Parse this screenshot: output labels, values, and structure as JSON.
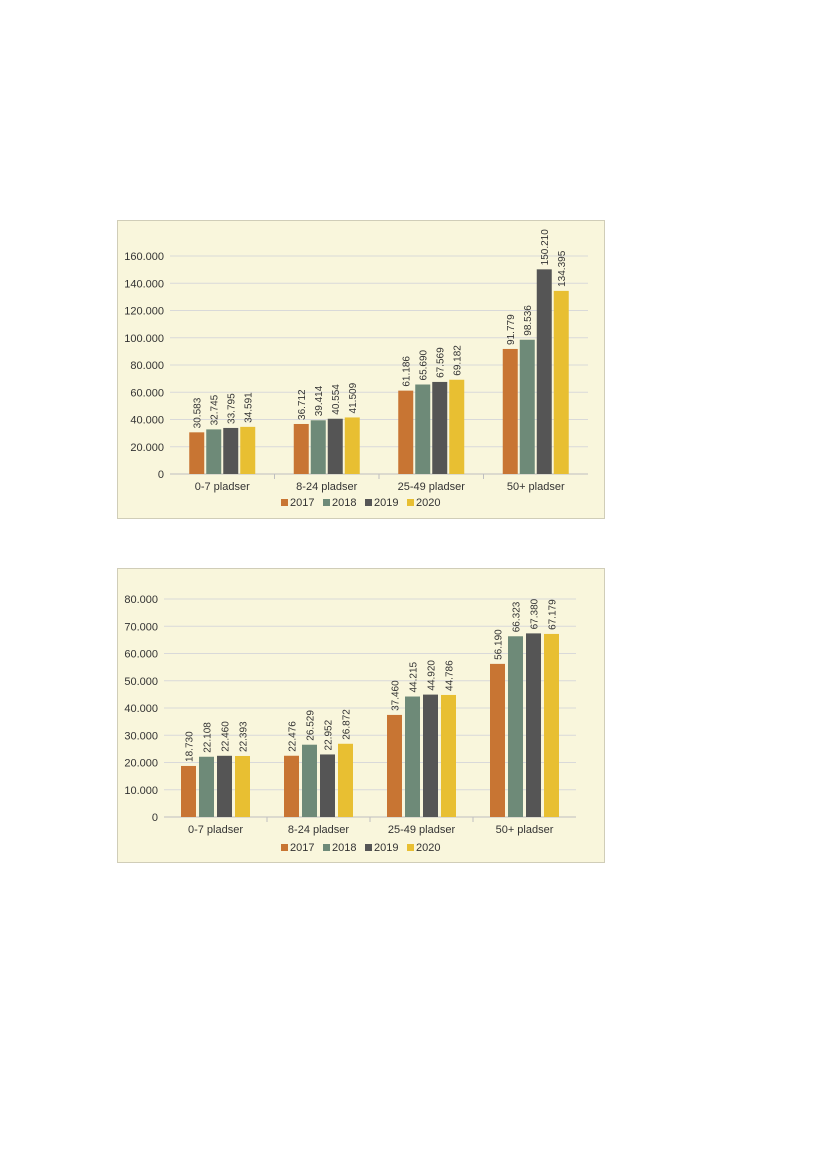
{
  "chart_data": [
    {
      "type": "bar",
      "categories": [
        "0-7 pladser",
        "8-24 pladser",
        "25-49 pladser",
        "50+ pladser"
      ],
      "series": [
        {
          "name": "2017",
          "values": [
            30583,
            36712,
            61186,
            91779
          ],
          "labels": [
            "30.583",
            "36.712",
            "61.186",
            "91.779"
          ]
        },
        {
          "name": "2018",
          "values": [
            32745,
            39414,
            65690,
            98536
          ],
          "labels": [
            "32.745",
            "39.414",
            "65.690",
            "98.536"
          ]
        },
        {
          "name": "2019",
          "values": [
            33795,
            40554,
            67569,
            150210
          ],
          "labels": [
            "33.795",
            "40.554",
            "67.569",
            "150.210"
          ]
        },
        {
          "name": "2020",
          "values": [
            34591,
            41509,
            69182,
            134395
          ],
          "labels": [
            "34.591",
            "41.509",
            "69.182",
            "134.395"
          ]
        }
      ],
      "yticks": [
        "0",
        "20.000",
        "40.000",
        "60.000",
        "80.000",
        "100.000",
        "120.000",
        "140.000",
        "160.000"
      ],
      "ylim": [
        0,
        160000
      ],
      "grid": true,
      "legend_position": "bottom",
      "colors": [
        "#c87533",
        "#6e8a78",
        "#555555",
        "#e8bf32"
      ]
    },
    {
      "type": "bar",
      "categories": [
        "0-7 pladser",
        "8-24 pladser",
        "25-49 pladser",
        "50+ pladser"
      ],
      "series": [
        {
          "name": "2017",
          "values": [
            18730,
            22476,
            37460,
            56190
          ],
          "labels": [
            "18.730",
            "22.476",
            "37.460",
            "56.190"
          ]
        },
        {
          "name": "2018",
          "values": [
            22108,
            26529,
            44215,
            66323
          ],
          "labels": [
            "22.108",
            "26.529",
            "44.215",
            "66.323"
          ]
        },
        {
          "name": "2019",
          "values": [
            22460,
            22952,
            44920,
            67380
          ],
          "labels": [
            "22.460",
            "22.952",
            "44.920",
            "67.380"
          ]
        },
        {
          "name": "2020",
          "values": [
            22393,
            26872,
            44786,
            67179
          ],
          "labels": [
            "22.393",
            "26.872",
            "44.786",
            "67.179"
          ]
        }
      ],
      "yticks": [
        "0",
        "10.000",
        "20.000",
        "30.000",
        "40.000",
        "50.000",
        "60.000",
        "70.000",
        "80.000"
      ],
      "ylim": [
        0,
        80000
      ],
      "grid": true,
      "legend_position": "bottom",
      "colors": [
        "#c87533",
        "#6e8a78",
        "#555555",
        "#e8bf32"
      ]
    }
  ]
}
